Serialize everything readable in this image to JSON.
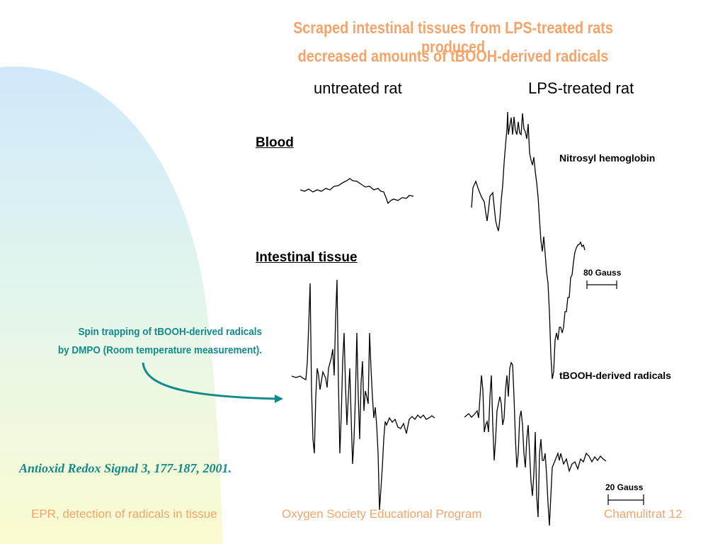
{
  "slide": {
    "title_line1": "Scraped intestinal tissues from LPS-treated rats produced",
    "title_line2": "decreased amounts of tBOOH-derived radicals",
    "column_untreated": "untreated rat",
    "column_lps": "LPS-treated rat",
    "row_blood": "Blood",
    "row_intestinal": "Intestinal tissue",
    "label_nitrosyl": "Nitrosyl hemoglobin",
    "label_tbooh": "tBOOH-derived radicals",
    "scale_80": "80 Gauss",
    "scale_20": "20 Gauss",
    "note_line1": "Spin trapping of tBOOH-derived radicals",
    "note_line2": "by DMPO (Room temperature measurement).",
    "citation": "Antioxid Redox Signal 3, 177-187,  2001.",
    "colors": {
      "title": "#f4a46a",
      "note": "#138a8a",
      "arrow": "#138a8a",
      "trace": "#000000"
    }
  },
  "footer": {
    "left": "EPR, detection of radicals in tissue",
    "center": "Oxygen Society Educational Program",
    "right": "Chamulitrat 12"
  }
}
